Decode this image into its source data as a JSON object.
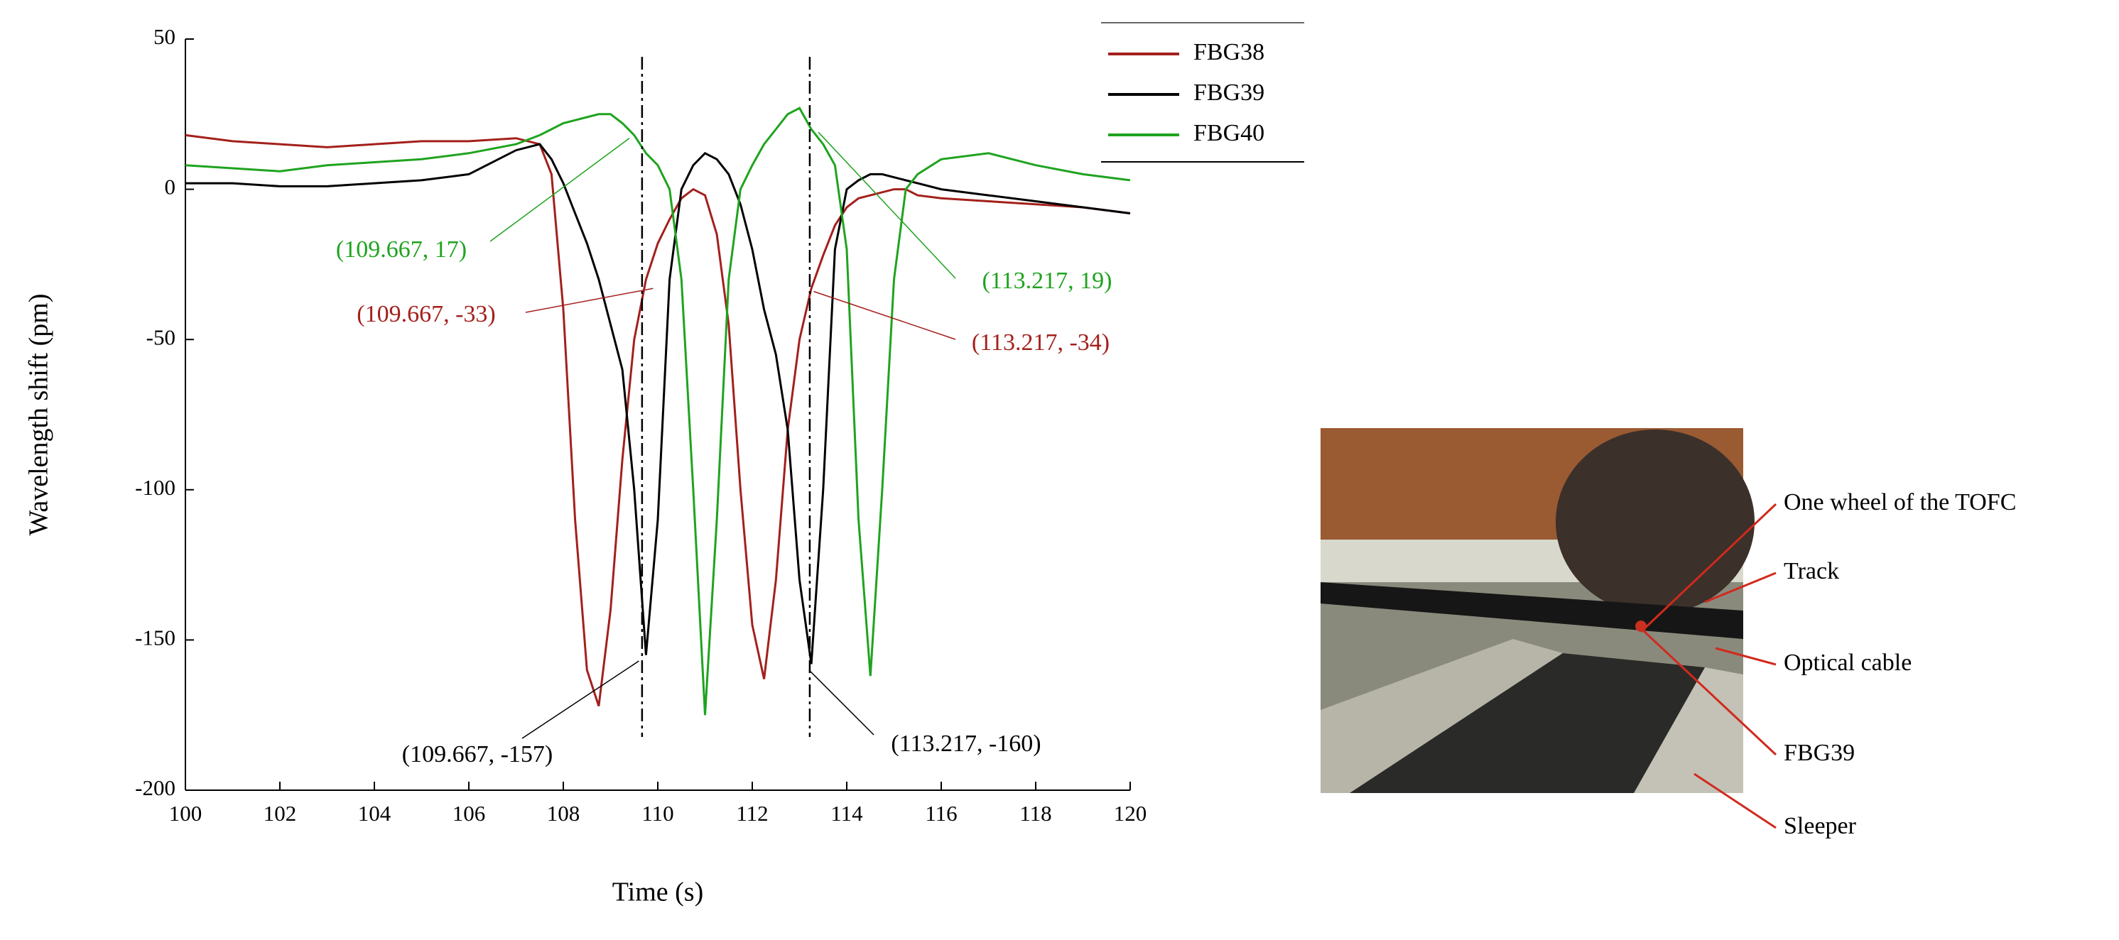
{
  "chart_data": {
    "type": "line",
    "xlabel": "Time (s)",
    "ylabel": "Wavelength shift (pm)",
    "x": [
      100,
      101,
      102,
      103,
      104,
      105,
      106,
      107,
      107.5,
      107.75,
      108,
      108.25,
      108.5,
      108.75,
      109,
      109.25,
      109.5,
      109.75,
      110,
      110.25,
      110.5,
      110.75,
      111,
      111.25,
      111.5,
      111.75,
      112,
      112.25,
      112.5,
      112.75,
      113,
      113.25,
      113.5,
      113.75,
      114,
      114.25,
      114.5,
      114.75,
      115,
      115.25,
      115.5,
      116,
      117,
      118,
      119,
      120
    ],
    "series": [
      {
        "name": "FBG38",
        "color": "#a3201c",
        "values": [
          18,
          16,
          15,
          14,
          15,
          16,
          16,
          17,
          15,
          5,
          -40,
          -110,
          -160,
          -172,
          -140,
          -90,
          -50,
          -30,
          -18,
          -10,
          -3,
          0,
          -2,
          -15,
          -45,
          -100,
          -145,
          -163,
          -130,
          -80,
          -50,
          -33,
          -22,
          -12,
          -6,
          -3,
          -2,
          -1,
          0,
          0,
          -2,
          -3,
          -4,
          -5,
          -6,
          -8
        ]
      },
      {
        "name": "FBG39",
        "color": "#000000",
        "values": [
          2,
          2,
          1,
          1,
          2,
          3,
          5,
          13,
          15,
          10,
          2,
          -8,
          -18,
          -30,
          -45,
          -60,
          -100,
          -155,
          -110,
          -30,
          0,
          8,
          12,
          10,
          5,
          -5,
          -20,
          -40,
          -55,
          -80,
          -130,
          -158,
          -100,
          -20,
          0,
          3,
          5,
          5,
          4,
          3,
          2,
          0,
          -2,
          -4,
          -6,
          -8
        ]
      },
      {
        "name": "FBG40",
        "color": "#1fa31f",
        "values": [
          8,
          7,
          6,
          8,
          9,
          10,
          12,
          15,
          18,
          20,
          22,
          23,
          24,
          25,
          25,
          22,
          18,
          12,
          8,
          0,
          -30,
          -100,
          -175,
          -110,
          -30,
          0,
          8,
          15,
          20,
          25,
          27,
          20,
          15,
          8,
          -20,
          -110,
          -162,
          -100,
          -30,
          0,
          5,
          10,
          12,
          8,
          5,
          3
        ]
      }
    ],
    "xlim": [
      100,
      120
    ],
    "xticks": [
      100,
      102,
      104,
      106,
      108,
      110,
      112,
      114,
      116,
      118,
      120
    ],
    "ylim": [
      -200,
      50
    ],
    "yticks": [
      -200,
      -150,
      -100,
      -50,
      0,
      50
    ],
    "vlines": [
      109.667,
      113.217
    ],
    "annotations": [
      {
        "text": "(109.667, 17)",
        "color": "#1fa31f",
        "x": 109.4,
        "y": 17
      },
      {
        "text": "(109.667, -33)",
        "color": "#a3201c",
        "x": 109.9,
        "y": -33
      },
      {
        "text": "(109.667, -157)",
        "color": "#000000",
        "x": 109.6,
        "y": -157
      },
      {
        "text": "(113.217, 19)",
        "color": "#1fa31f",
        "x": 113.4,
        "y": 19
      },
      {
        "text": "(113.217, -34)",
        "color": "#a3201c",
        "x": 113.3,
        "y": -34
      },
      {
        "text": "(113.217, -160)",
        "color": "#000000",
        "x": 113.2,
        "y": -160
      }
    ],
    "legend": "upper right"
  },
  "photo": {
    "labels": [
      "One wheel of the TOFC",
      "Track",
      "Optical cable",
      "FBG39",
      "Sleeper"
    ]
  }
}
